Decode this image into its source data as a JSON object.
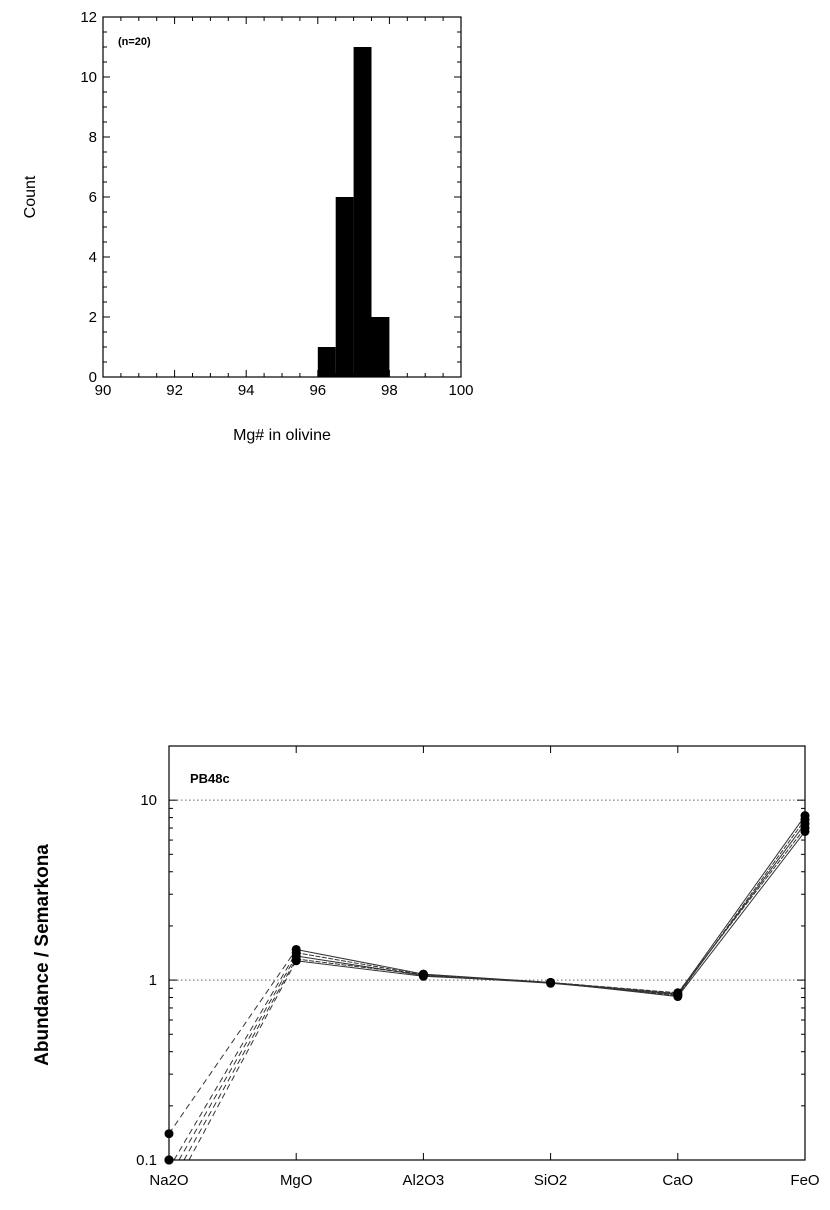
{
  "chart_data": [
    {
      "type": "bar",
      "subtype": "histogram",
      "xlabel": "Mg# in olivine",
      "ylabel": "Count",
      "annotation": "(n=20)",
      "xlim": [
        90,
        100
      ],
      "ylim": [
        0,
        12
      ],
      "x_ticks": [
        "90",
        "92",
        "94",
        "96",
        "98",
        "100"
      ],
      "y_ticks": [
        "0",
        "2",
        "4",
        "6",
        "8",
        "10",
        "12"
      ],
      "bins": [
        {
          "start": 96.0,
          "end": 96.5,
          "count": 1
        },
        {
          "start": 96.5,
          "end": 97.0,
          "count": 6
        },
        {
          "start": 97.0,
          "end": 97.5,
          "count": 11
        },
        {
          "start": 97.5,
          "end": 98.0,
          "count": 2
        }
      ],
      "bar_color": "#000000",
      "grid": false
    },
    {
      "type": "line",
      "yscale": "log",
      "ylabel": "Abundance / Semarkona",
      "annotation": "PB48c",
      "categories": [
        "Na2O",
        "MgO",
        "Al2O3",
        "SiO2",
        "CaO",
        "FeO"
      ],
      "ylim": [
        0.1,
        20
      ],
      "y_ticks": [
        "0.1",
        "1",
        "10"
      ],
      "grid": "horizontal dotted at 1 and 10",
      "series": [
        {
          "values": [
            0.14,
            1.48,
            1.08,
            0.97,
            0.84,
            8.2
          ]
        },
        {
          "values": [
            0.1,
            1.42,
            1.07,
            0.97,
            0.82,
            7.8
          ]
        },
        {
          "values": [
            0.1,
            1.36,
            1.06,
            0.96,
            0.83,
            7.4
          ]
        },
        {
          "values": [
            0.1,
            1.31,
            1.07,
            0.97,
            0.85,
            7.0
          ]
        },
        {
          "values": [
            0.1,
            1.28,
            1.05,
            0.97,
            0.81,
            6.7
          ]
        }
      ],
      "na_segment_style": "dashed",
      "line_color": "#333333"
    }
  ]
}
